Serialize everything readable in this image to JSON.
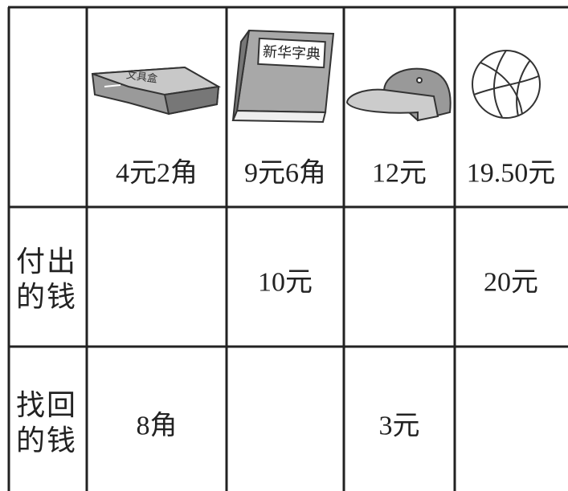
{
  "table": {
    "items": [
      {
        "label": "文具盒",
        "price": "4元2角"
      },
      {
        "label": "新华字典",
        "price": "9元6角"
      },
      {
        "price": "12元"
      },
      {
        "price": "19.50元"
      }
    ],
    "rows": [
      {
        "header": "付出的钱",
        "cells": [
          null,
          "10元",
          null,
          "20元"
        ]
      },
      {
        "header": "找回的钱",
        "cells": [
          "8角",
          null,
          "3元",
          null
        ]
      }
    ]
  }
}
